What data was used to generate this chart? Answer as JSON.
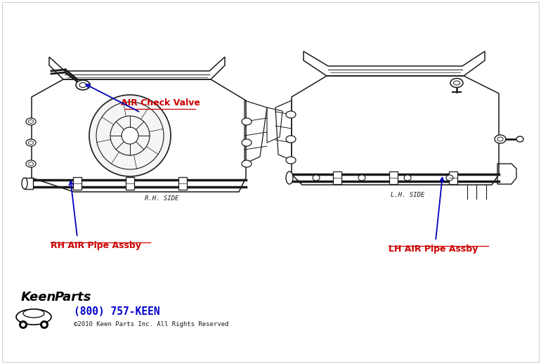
{
  "bg_color": "#ffffff",
  "fig_width": 7.7,
  "fig_height": 5.18,
  "label_check_valve": "AIR Check Valve",
  "label_rh_pipe": "RH AIR Pipe Assby",
  "label_lh_pipe": "LH AIR Pipe Assby",
  "label_color_red": "#cc0000",
  "arrow_color": "#0000bb",
  "line_color": "#1a1a1a",
  "rh_side_text": "R.H. SIDE",
  "lh_side_text": "L.H. SIDE",
  "keen_phone": "(800) 757-KEEN",
  "keen_copyright": "©2010 Keen Parts Inc. All Rights Reserved",
  "keen_phone_color": "#0000cc",
  "keen_text_color": "#1a1a1a"
}
